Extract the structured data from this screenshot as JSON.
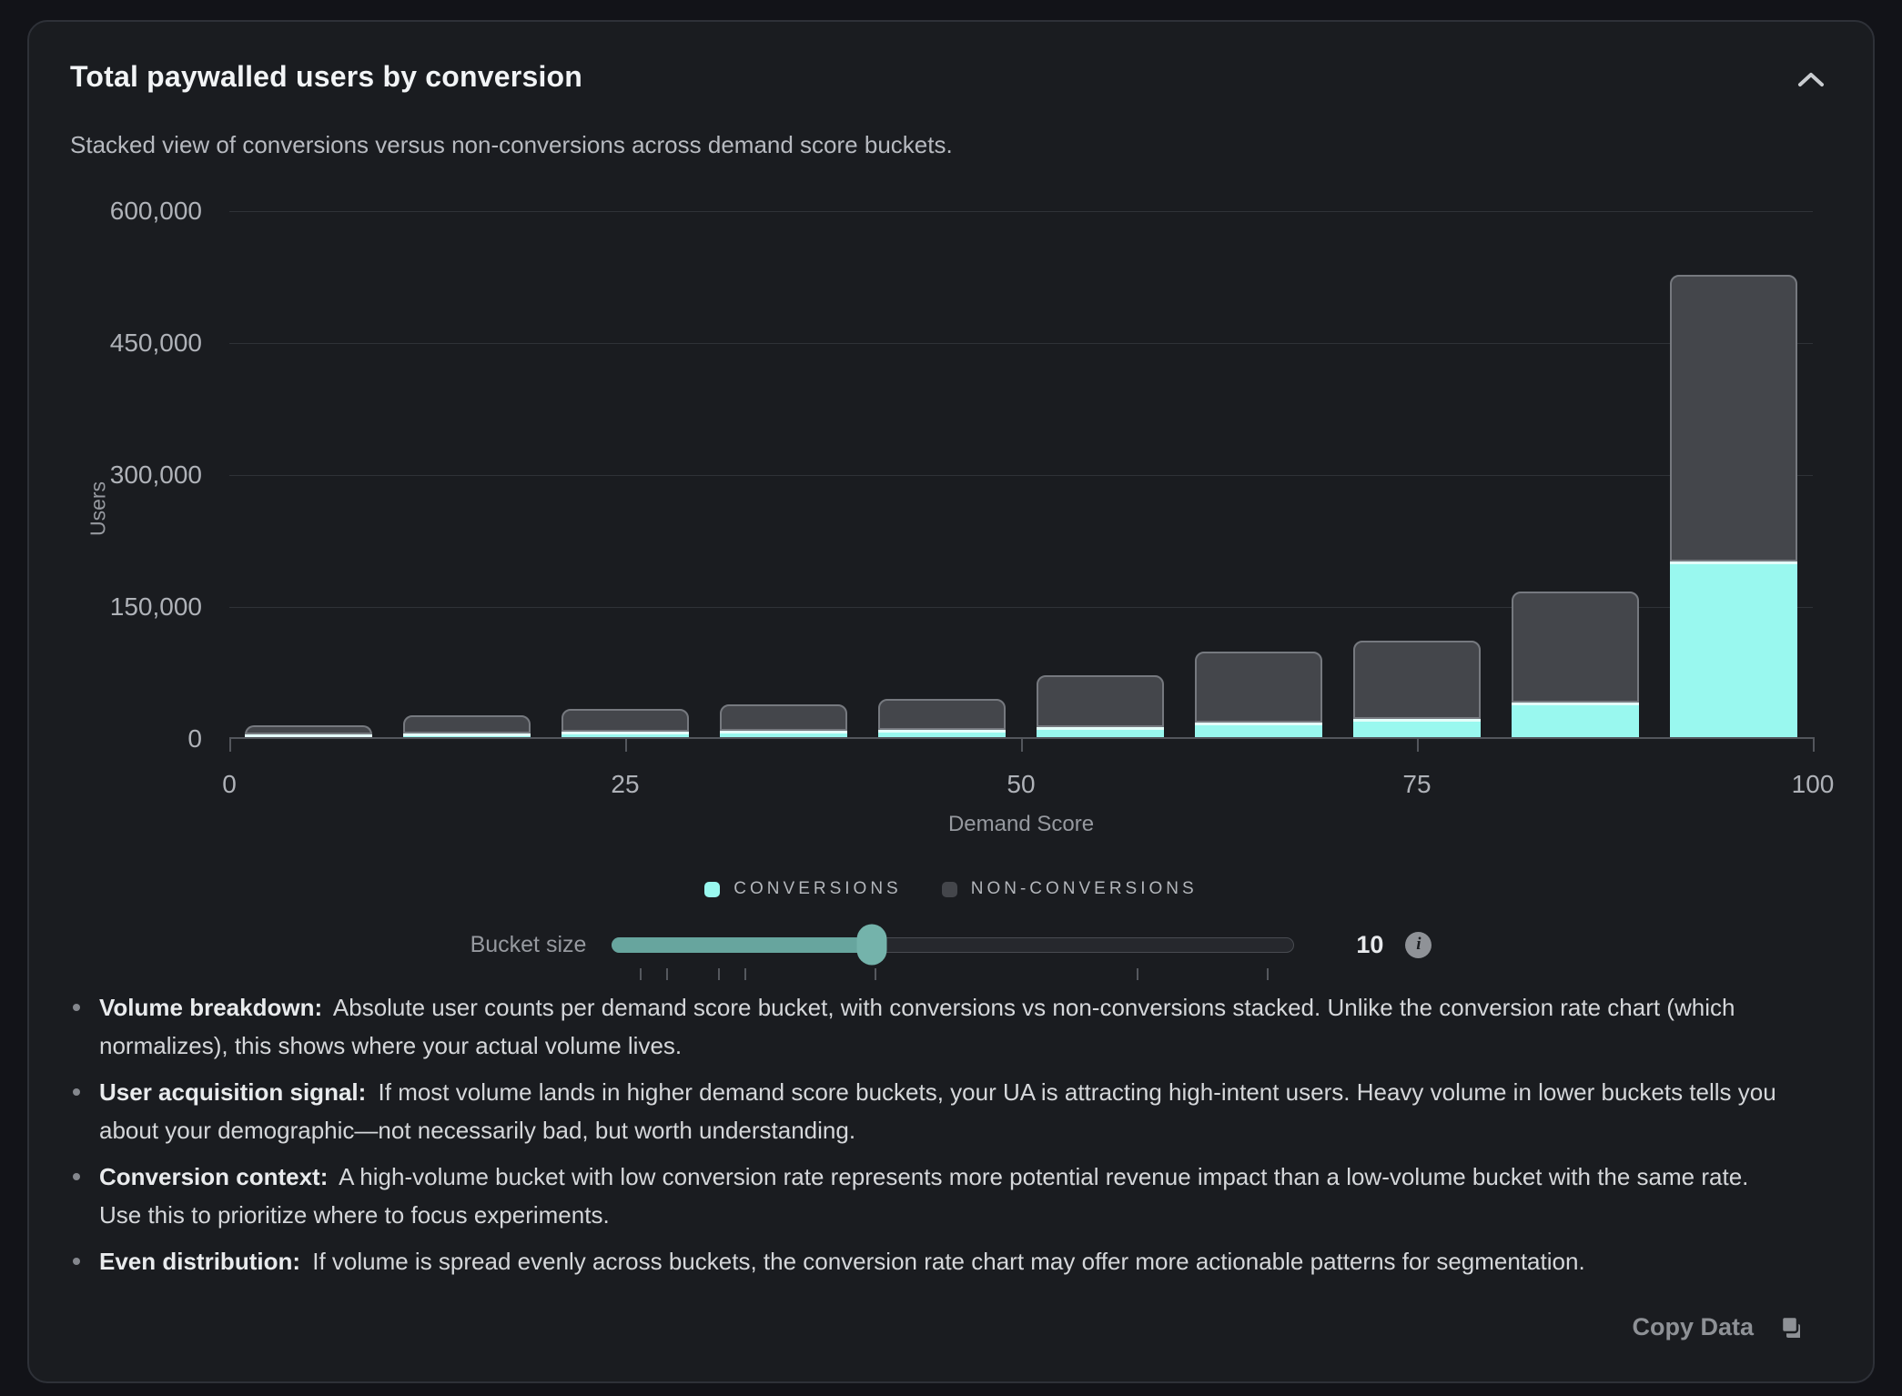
{
  "card": {
    "title": "Total paywalled users by conversion",
    "subtitle": "Stacked view of conversions versus non-conversions across demand score buckets."
  },
  "chart_data": {
    "type": "bar",
    "stacked": true,
    "title": "Total paywalled users by conversion",
    "xlabel": "Demand Score",
    "ylabel": "Users",
    "ylim": [
      0,
      600000
    ],
    "grid": true,
    "legend_position": "bottom",
    "bucket_size": 10,
    "categories": [
      "0-10",
      "10-20",
      "20-30",
      "30-40",
      "40-50",
      "50-60",
      "60-70",
      "70-80",
      "80-90",
      "90-100"
    ],
    "x_tick_labels": [
      "0",
      "25",
      "50",
      "75",
      "100"
    ],
    "y_tick_labels": [
      "0",
      "150,000",
      "300,000",
      "450,000",
      "600,000"
    ],
    "series": [
      {
        "name": "CONVERSIONS",
        "color": "#99F8EF",
        "values": [
          5000,
          6000,
          8500,
          9500,
          10500,
          13500,
          18500,
          23000,
          41500,
          201500
        ]
      },
      {
        "name": "NON-CONVERSIONS",
        "color": "#44464B",
        "values": [
          10500,
          21000,
          25500,
          29500,
          35000,
          59000,
          80500,
          89000,
          126000,
          326000
        ]
      }
    ]
  },
  "slider": {
    "label": "Bucket size",
    "value": "10",
    "fill_percent": 38,
    "tick_percents": [
      2,
      6,
      14,
      18,
      38,
      78,
      98
    ],
    "info_glyph": "i"
  },
  "insights": [
    {
      "label": "Volume breakdown:",
      "text": "Absolute user counts per demand score bucket, with conversions vs non-conversions stacked. Unlike the conversion rate chart (which normalizes), this shows where your actual volume lives."
    },
    {
      "label": "User acquisition signal:",
      "text": "If most volume lands in higher demand score buckets, your UA is attracting high-intent users. Heavy volume in lower buckets tells you about your demographic—not necessarily bad, but worth understanding."
    },
    {
      "label": "Conversion context:",
      "text": "A high-volume bucket with low conversion rate represents more potential revenue impact than a low-volume bucket with the same rate. Use this to prioritize where to focus experiments."
    },
    {
      "label": "Even distribution:",
      "text": "If volume is spread evenly across buckets, the conversion rate chart may offer more actionable patterns for segmentation."
    }
  ],
  "footer": {
    "copy_button": "Copy Data"
  },
  "colors": {
    "page_bg": "#121318",
    "card_bg": "#1A1C20",
    "conversions": "#99F8EF",
    "non_conversions": "#44464B",
    "slider_accent": "#74B3AB"
  }
}
